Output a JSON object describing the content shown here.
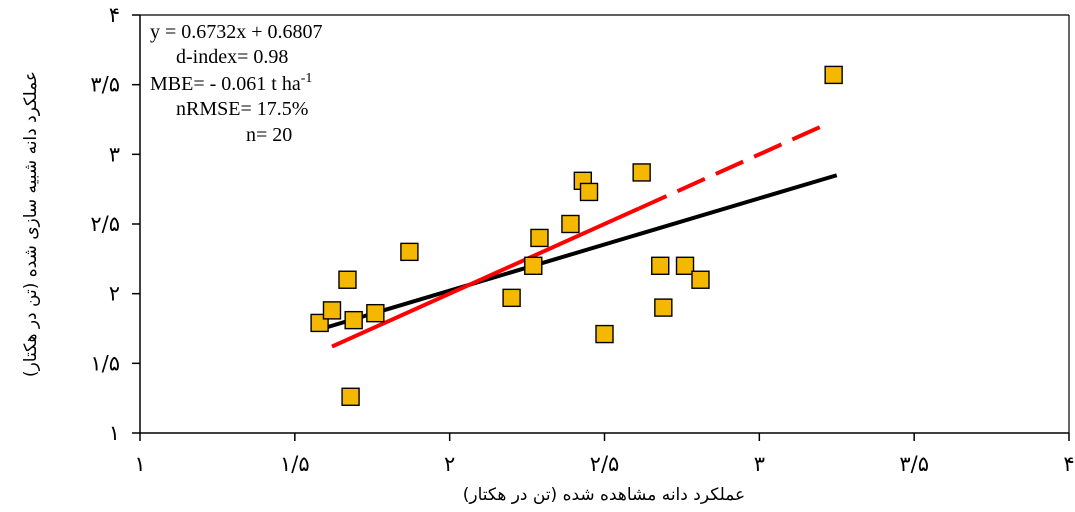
{
  "chart_data": {
    "type": "scatter",
    "title": "",
    "xlabel": "عملکرد دانه مشاهده شده (تن در هکتار)",
    "ylabel": "عملکرد دانه شبیه سازی شده (تن در هکتار)",
    "xlim": [
      1,
      4
    ],
    "ylim": [
      1,
      4
    ],
    "x_ticks": [
      1,
      1.5,
      2,
      2.5,
      3,
      3.5,
      4
    ],
    "y_ticks": [
      1,
      1.5,
      2,
      2.5,
      3,
      3.5,
      4
    ],
    "x_tick_labels": [
      "۱",
      "۱/۵",
      "۲",
      "۲/۵",
      "۳",
      "۳/۵",
      "۴"
    ],
    "y_tick_labels": [
      "۱",
      "۱/۵",
      "۲",
      "۲/۵",
      "۳",
      "۳/۵",
      "۴"
    ],
    "grid": false,
    "marker_color": "#f5b800",
    "points": [
      {
        "x": 1.58,
        "y": 1.79
      },
      {
        "x": 1.62,
        "y": 1.88
      },
      {
        "x": 1.67,
        "y": 2.1
      },
      {
        "x": 1.69,
        "y": 1.81
      },
      {
        "x": 1.76,
        "y": 1.86
      },
      {
        "x": 1.68,
        "y": 1.26
      },
      {
        "x": 1.87,
        "y": 2.3
      },
      {
        "x": 2.2,
        "y": 1.97
      },
      {
        "x": 2.27,
        "y": 2.2
      },
      {
        "x": 2.29,
        "y": 2.4
      },
      {
        "x": 2.39,
        "y": 2.5
      },
      {
        "x": 2.43,
        "y": 2.81
      },
      {
        "x": 2.45,
        "y": 2.73
      },
      {
        "x": 2.5,
        "y": 1.71
      },
      {
        "x": 2.62,
        "y": 2.87
      },
      {
        "x": 2.68,
        "y": 2.2
      },
      {
        "x": 2.69,
        "y": 1.9
      },
      {
        "x": 2.76,
        "y": 2.2
      },
      {
        "x": 2.81,
        "y": 2.1
      },
      {
        "x": 3.24,
        "y": 3.57
      }
    ],
    "lines": [
      {
        "role": "regression",
        "color": "#000000",
        "dash": "solid",
        "x": [
          1.59,
          3.25
        ],
        "y": [
          1.75,
          2.85
        ]
      },
      {
        "role": "one-to-one",
        "color": "#ff0000",
        "dash": "solid-then-dashed",
        "x": [
          1.62,
          3.22
        ],
        "y": [
          1.62,
          3.22
        ]
      }
    ],
    "annotations": [
      {
        "text": "y = 0.6732x   + 0.6807"
      },
      {
        "text": "d-index=  0.98"
      },
      {
        "text": "MBE=  - 0.061  t ha",
        "superscript": "-1"
      },
      {
        "text": "nRMSE=  17.5%"
      },
      {
        "text": "n= 20"
      }
    ]
  }
}
